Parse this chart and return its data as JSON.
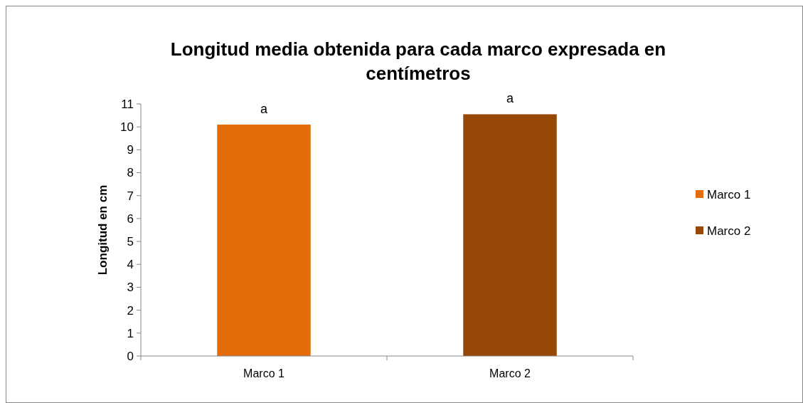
{
  "chart_data": {
    "type": "bar",
    "title": "Longitud media obtenida para cada marco expresada en centímetros",
    "ylabel": "Longitud en cm",
    "categories": [
      "Marco 1",
      "Marco 2"
    ],
    "series": [
      {
        "name": "Marco 1",
        "color": "#e46c0a",
        "values": [
          10.1,
          null
        ]
      },
      {
        "name": "Marco 2",
        "color": "#974806",
        "values": [
          null,
          10.55
        ]
      }
    ],
    "ylim": [
      0,
      11
    ],
    "yticks": [
      0,
      1,
      2,
      3,
      4,
      5,
      6,
      7,
      8,
      9,
      10,
      11
    ],
    "legend": "right",
    "annotations": [
      {
        "text": "a",
        "x": "Marco 1",
        "y": 10.1
      },
      {
        "text": "a",
        "x": "Marco 2",
        "y": 10.55
      }
    ]
  }
}
